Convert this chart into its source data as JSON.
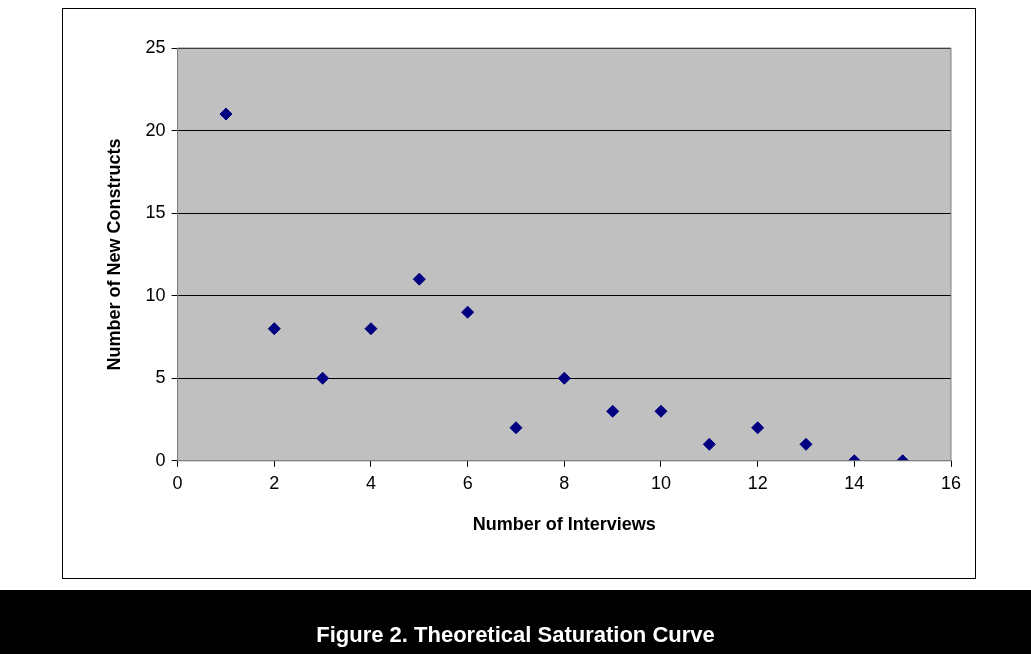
{
  "chart_data": {
    "type": "scatter",
    "title": "Figure 2. Theoretical Saturation Curve",
    "xlabel": "Number of Interviews",
    "ylabel": "Number of New Constructs",
    "x": [
      1,
      2,
      3,
      4,
      5,
      6,
      7,
      8,
      9,
      10,
      11,
      12,
      13,
      14,
      15
    ],
    "series": [
      {
        "color": "#000080",
        "values": [
          21,
          8,
          5,
          8,
          11,
          9,
          2,
          5,
          3,
          3,
          1,
          2,
          1,
          0,
          0
        ]
      }
    ],
    "xlim": [
      0,
      16
    ],
    "xticks": [
      0,
      2,
      4,
      6,
      8,
      10,
      12,
      14,
      16
    ],
    "ylim": [
      0,
      25
    ],
    "yticks": [
      0,
      5,
      10,
      15,
      20,
      25
    ],
    "grid": "y",
    "legend": false,
    "marker": "diamond"
  }
}
